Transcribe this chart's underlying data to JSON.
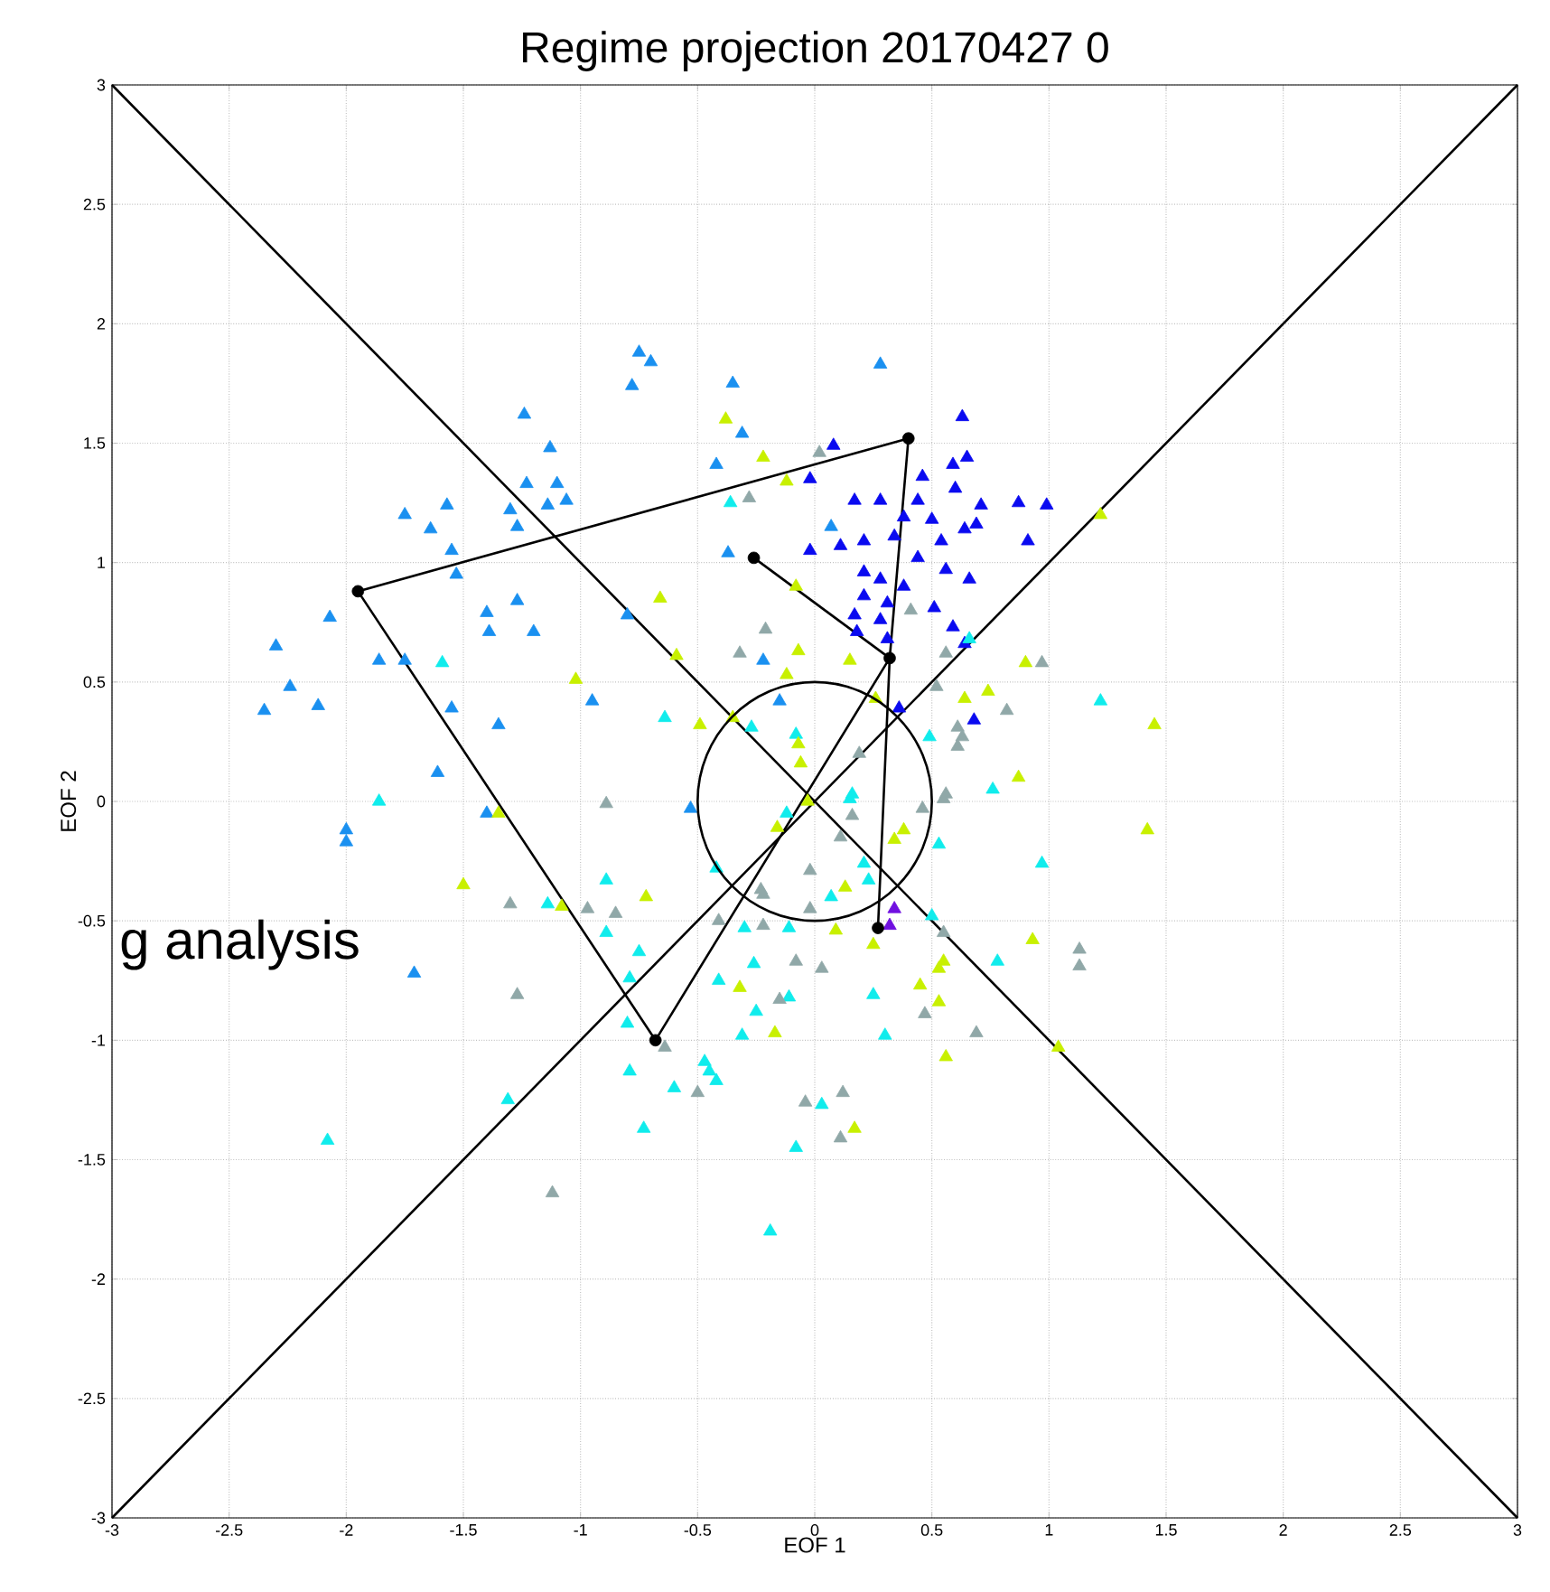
{
  "chart_data": {
    "type": "scatter",
    "title": "Regime projection  20170427 0",
    "xlabel": "EOF 1",
    "ylabel": "EOF 2",
    "xlim": [
      -3,
      3
    ],
    "ylim": [
      -3,
      3
    ],
    "xticks": [
      -3,
      -2.5,
      -2,
      -1.5,
      -1,
      -0.5,
      0,
      0.5,
      1,
      1.5,
      2,
      2.5,
      3
    ],
    "yticks": [
      -3,
      -2.5,
      -2,
      -1.5,
      -1,
      -0.5,
      0,
      0.5,
      1,
      1.5,
      2,
      2.5,
      3
    ],
    "grid": true,
    "marker": "triangle",
    "annotations": [
      "g analysis"
    ],
    "series": [
      {
        "color": "#1a90f0",
        "x": [
          -2.35,
          -2.24,
          -2.3,
          -2.12,
          -2.07,
          -1.86,
          -1.75,
          -1.55,
          -1.61,
          -1.35,
          -1.75,
          -1.57,
          -1.64,
          -1.55,
          -1.53,
          -1.4,
          -1.39,
          -1.27,
          -1.2,
          -1.3,
          -1.27,
          -1.23,
          -1.13,
          -1.1,
          -1.06,
          -1.14,
          -1.24,
          -0.78,
          -0.75,
          -0.7,
          -0.35,
          -0.31,
          -0.42,
          -0.37,
          -0.8,
          -0.95,
          -0.22,
          -0.15,
          0.07,
          -2.0,
          -2.0,
          -1.71,
          -1.4,
          -0.53,
          0.28
        ],
        "values": [
          0.38,
          0.48,
          0.65,
          0.4,
          0.77,
          0.59,
          0.59,
          0.39,
          0.12,
          0.32,
          1.2,
          1.24,
          1.14,
          1.05,
          0.95,
          0.79,
          0.71,
          0.84,
          0.71,
          1.22,
          1.15,
          1.33,
          1.48,
          1.33,
          1.26,
          1.24,
          1.62,
          1.74,
          1.88,
          1.84,
          1.75,
          1.54,
          1.41,
          1.04,
          0.78,
          0.42,
          0.59,
          0.42,
          1.15,
          -0.12,
          -0.17,
          -0.72,
          -0.05,
          -0.03,
          1.83
        ]
      },
      {
        "color": "#0a0af0",
        "x": [
          0.63,
          0.08,
          -0.02,
          0.17,
          0.28,
          0.46,
          0.44,
          0.59,
          0.65,
          0.6,
          0.71,
          0.87,
          0.99,
          0.91,
          0.69,
          0.64,
          -0.02,
          0.11,
          0.21,
          0.34,
          0.44,
          0.54,
          0.56,
          0.66,
          0.21,
          0.28,
          0.38,
          0.21,
          0.31,
          0.51,
          0.17,
          0.28,
          0.59,
          0.18,
          0.31,
          0.64,
          0.36,
          0.68,
          0.38,
          0.5
        ],
        "values": [
          1.61,
          1.49,
          1.35,
          1.26,
          1.26,
          1.36,
          1.26,
          1.41,
          1.44,
          1.31,
          1.24,
          1.25,
          1.24,
          1.09,
          1.16,
          1.14,
          1.05,
          1.07,
          1.09,
          1.11,
          1.02,
          1.09,
          0.97,
          0.93,
          0.96,
          0.93,
          0.9,
          0.86,
          0.83,
          0.81,
          0.78,
          0.76,
          0.73,
          0.71,
          0.68,
          0.66,
          0.39,
          0.34,
          1.19,
          1.18
        ]
      },
      {
        "color": "#10ecec",
        "x": [
          -1.59,
          -0.64,
          -0.36,
          -1.86,
          -0.27,
          -0.08,
          1.22,
          0.76,
          0.49,
          0.66,
          0.16,
          0.97,
          0.53,
          0.15,
          0.23,
          0.07,
          0.5,
          0.78,
          0.25,
          0.3,
          -0.3,
          -0.26,
          -0.25,
          -0.31,
          -0.45,
          0.03,
          -0.08,
          -0.19,
          -0.42,
          -0.12,
          0.21,
          -2.08,
          -0.89,
          -1.14,
          -0.89,
          -0.75,
          -0.79,
          -0.8,
          -0.79,
          -0.6,
          -0.47,
          -0.42,
          -0.73,
          -1.31,
          -0.41,
          -0.11,
          -0.11
        ],
        "values": [
          0.58,
          0.35,
          1.25,
          0.0,
          0.31,
          0.28,
          0.42,
          0.05,
          0.27,
          0.68,
          0.03,
          -0.26,
          -0.18,
          0.01,
          -0.33,
          -0.4,
          -0.48,
          -0.67,
          -0.81,
          -0.98,
          -0.53,
          -0.68,
          -0.88,
          -0.98,
          -1.13,
          -1.27,
          -1.45,
          -1.8,
          -0.28,
          -0.05,
          -0.26,
          -1.42,
          -0.33,
          -0.43,
          -0.55,
          -0.63,
          -0.74,
          -0.93,
          -1.13,
          -1.2,
          -1.09,
          -1.17,
          -1.37,
          -1.25,
          -0.75,
          -0.82,
          -0.53
        ]
      },
      {
        "color": "#c8f000",
        "x": [
          -0.38,
          -0.22,
          -0.12,
          -0.66,
          -0.59,
          -1.02,
          -0.49,
          -0.35,
          -0.08,
          -0.07,
          -0.12,
          -0.07,
          0.15,
          0.9,
          1.22,
          1.45,
          0.64,
          0.74,
          0.87,
          0.26,
          1.42,
          -0.06,
          -0.16,
          -0.03,
          0.38,
          0.34,
          0.13,
          0.09,
          0.25,
          0.55,
          0.53,
          0.45,
          0.53,
          0.93,
          0.56,
          1.04,
          0.17,
          -0.17,
          -0.32,
          -1.5,
          -1.08,
          -0.72,
          -1.35
        ],
        "values": [
          1.6,
          1.44,
          1.34,
          0.85,
          0.61,
          0.51,
          0.32,
          0.35,
          0.9,
          0.63,
          0.53,
          0.24,
          0.59,
          0.58,
          1.2,
          0.32,
          0.43,
          0.46,
          0.1,
          0.43,
          -0.12,
          0.16,
          -0.11,
          0.0,
          -0.12,
          -0.16,
          -0.36,
          -0.54,
          -0.6,
          -0.67,
          -0.7,
          -0.77,
          -0.84,
          -0.58,
          -1.07,
          -1.03,
          -1.37,
          -0.97,
          -0.78,
          -0.35,
          -0.44,
          -0.4,
          -0.05
        ]
      },
      {
        "color": "#90a8a8",
        "x": [
          -0.28,
          -0.21,
          -0.32,
          0.02,
          0.41,
          0.56,
          0.97,
          0.82,
          0.52,
          0.61,
          0.61,
          0.19,
          0.56,
          0.63,
          0.55,
          0.46,
          0.16,
          0.11,
          -0.02,
          -0.23,
          -0.02,
          -0.41,
          -0.22,
          -0.08,
          0.03,
          -0.15,
          0.47,
          0.69,
          0.55,
          1.13,
          1.13,
          -0.04,
          0.12,
          0.11,
          -0.89,
          -1.3,
          -0.97,
          -0.85,
          -1.27,
          -0.64,
          -0.5,
          -1.12,
          -0.22
        ],
        "values": [
          1.27,
          0.72,
          0.62,
          1.46,
          0.8,
          0.62,
          0.58,
          0.38,
          0.48,
          0.31,
          0.23,
          0.2,
          0.03,
          0.27,
          0.01,
          -0.03,
          -0.06,
          -0.15,
          -0.29,
          -0.37,
          -0.45,
          -0.5,
          -0.52,
          -0.67,
          -0.7,
          -0.83,
          -0.89,
          -0.97,
          -0.55,
          -0.62,
          -0.69,
          -1.26,
          -1.22,
          -1.41,
          -0.01,
          -0.43,
          -0.45,
          -0.47,
          -0.81,
          -1.03,
          -1.22,
          -1.64,
          -0.39
        ]
      },
      {
        "color": "#7010e0",
        "x": [
          0.34,
          0.32
        ],
        "values": [
          -0.45,
          -0.52
        ]
      },
      {
        "type": "line",
        "color": "#000000",
        "marker": "none",
        "x": [
          -3,
          3
        ],
        "values": [
          3,
          -3
        ]
      },
      {
        "type": "line",
        "color": "#000000",
        "marker": "none",
        "x": [
          -3,
          3
        ],
        "values": [
          -3,
          3
        ]
      },
      {
        "type": "line",
        "color": "#000000",
        "marker": "none",
        "x": [
          -1.95,
          -0.68,
          0.32
        ],
        "values": [
          0.88,
          -1.0,
          0.6
        ]
      },
      {
        "type": "line",
        "color": "#000000",
        "marker": "none",
        "x": [
          -0.26,
          0.32
        ],
        "values": [
          1.02,
          0.6
        ]
      },
      {
        "type": "line",
        "color": "#000000",
        "marker": "none",
        "x": [
          -1.95,
          0.4
        ],
        "values": [
          0.88,
          1.52
        ]
      },
      {
        "type": "line",
        "color": "#000000",
        "marker": "none",
        "x": [
          0.27,
          0.32,
          0.4
        ],
        "values": [
          -0.53,
          0.6,
          1.52
        ]
      },
      {
        "type": "scatter",
        "color": "#000000",
        "marker": "circle",
        "x": [
          -0.26,
          0.32,
          -0.68,
          -1.95,
          0.4,
          0.27
        ],
        "values": [
          1.02,
          0.6,
          -1.0,
          0.88,
          1.52,
          -0.53
        ]
      }
    ]
  }
}
